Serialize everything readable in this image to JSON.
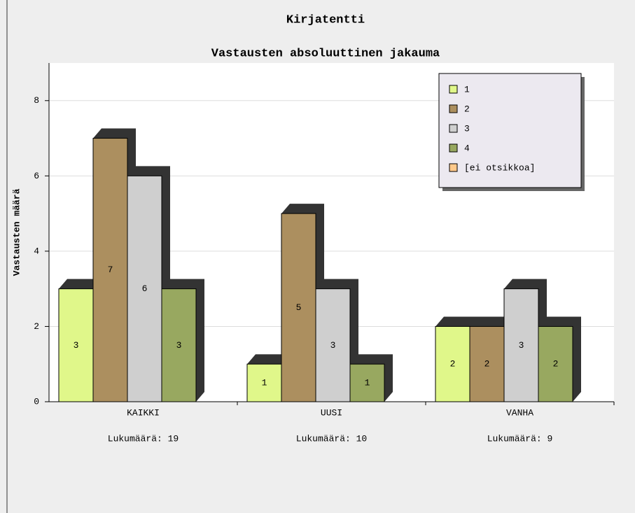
{
  "chart_data": {
    "type": "bar",
    "title": "Kirjatentti",
    "subtitle": "Vastausten absoluuttinen jakauma",
    "y_label": "Vastausten määrä",
    "categories": [
      "KAIKKI",
      "UUSI",
      "VANHA"
    ],
    "annotations": [
      "Lukumäärä: 19",
      "Lukumäärä: 10",
      "Lukumäärä: 9"
    ],
    "series": [
      {
        "name": "1",
        "color": "#e0f78a",
        "values": [
          3,
          1,
          2
        ]
      },
      {
        "name": "2",
        "color": "#ac8f5f",
        "values": [
          7,
          5,
          2
        ]
      },
      {
        "name": "3",
        "color": "#cfcfcf",
        "values": [
          6,
          3,
          3
        ]
      },
      {
        "name": "4",
        "color": "#98a860",
        "values": [
          3,
          1,
          2
        ]
      },
      {
        "name": "[ei otsikkoa]",
        "color": "#ffc98a",
        "values": [
          0,
          0,
          0
        ]
      }
    ],
    "ylim": [
      0,
      9
    ],
    "yticks": [
      0,
      2,
      4,
      6,
      8
    ],
    "grid": true,
    "legend": "top-right"
  }
}
